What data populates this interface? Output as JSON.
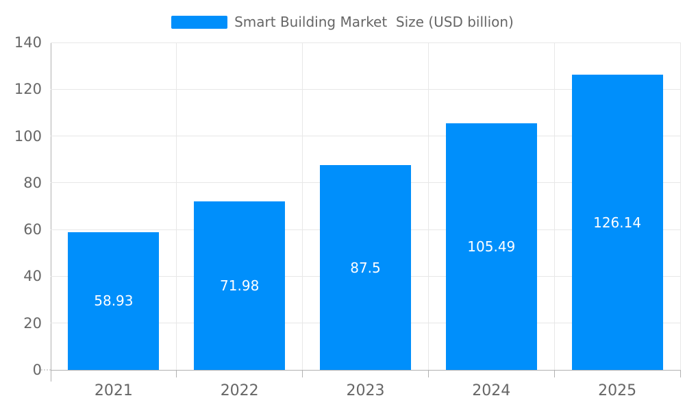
{
  "chart_data": {
    "type": "bar",
    "title": "Smart Building Market  Size (USD billion)",
    "categories": [
      "2021",
      "2022",
      "2023",
      "2024",
      "2025"
    ],
    "series": [
      {
        "name": "Smart Building Market  Size (USD billion)",
        "values": [
          58.93,
          71.98,
          87.5,
          105.49,
          126.14
        ]
      }
    ],
    "value_labels": [
      "58.93",
      "71.98",
      "87.5",
      "105.49",
      "126.14"
    ],
    "xlabel": "",
    "ylabel": "",
    "ylim": [
      0,
      140
    ],
    "yticks": [
      0,
      20,
      40,
      60,
      80,
      100,
      120,
      140
    ],
    "grid": true,
    "legend_position": "top",
    "colors": {
      "bar": "#008FFB",
      "value_label": "#ffffff",
      "axis_text": "#666666",
      "gridline": "#e7e7e7",
      "axis_line": "#b1b1b1"
    }
  }
}
